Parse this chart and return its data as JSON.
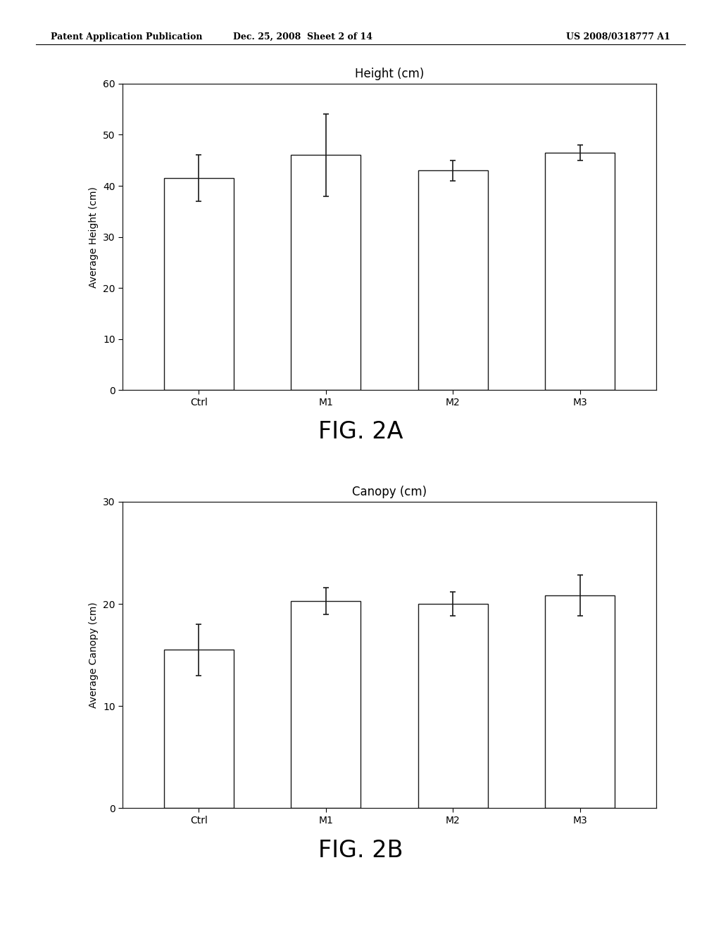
{
  "chart1": {
    "title": "Height (cm)",
    "ylabel": "Average Height (cm)",
    "categories": [
      "Ctrl",
      "M1",
      "M2",
      "M3"
    ],
    "values": [
      41.5,
      46.0,
      43.0,
      46.5
    ],
    "errors": [
      4.5,
      8.0,
      2.0,
      1.5
    ],
    "ylim": [
      0,
      60
    ],
    "yticks": [
      0,
      10,
      20,
      30,
      40,
      50,
      60
    ],
    "fig_label": "FIG. 2A"
  },
  "chart2": {
    "title": "Canopy (cm)",
    "ylabel": "Average Canopy (cm)",
    "categories": [
      "Ctrl",
      "M1",
      "M2",
      "M3"
    ],
    "values": [
      15.5,
      20.3,
      20.0,
      20.8
    ],
    "errors": [
      2.5,
      1.3,
      1.2,
      2.0
    ],
    "ylim": [
      0,
      30
    ],
    "yticks": [
      0,
      10,
      20,
      30
    ],
    "fig_label": "FIG. 2B"
  },
  "header_left": "Patent Application Publication",
  "header_mid": "Dec. 25, 2008  Sheet 2 of 14",
  "header_right": "US 2008/0318777 A1",
  "bar_color": "#ffffff",
  "bar_edgecolor": "#1a1a1a",
  "background_color": "#ffffff",
  "bar_width": 0.55,
  "capsize": 3,
  "ecolor": "#1a1a1a",
  "elinewidth": 1.2,
  "title_fontsize": 12,
  "label_fontsize": 10,
  "tick_fontsize": 10,
  "fig_label_fontsize": 24,
  "header_fontsize": 9
}
